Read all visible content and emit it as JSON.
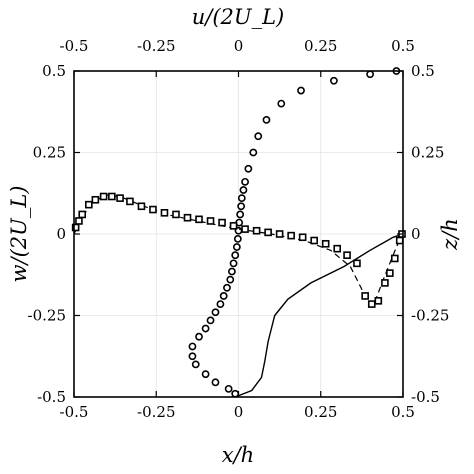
{
  "chart_data": {
    "type": "line",
    "xlim": [
      -0.5,
      0.5
    ],
    "ylim": [
      -0.5,
      0.5
    ],
    "grid": true,
    "axes": {
      "bottom": {
        "label": "x/h",
        "ticks": [
          "-0.5",
          "-0.25",
          "0",
          "0.25",
          "0.5"
        ]
      },
      "top": {
        "label": "u/(2U_L)",
        "ticks": [
          "-0.5",
          "-0.25",
          "0",
          "0.25",
          "0.5"
        ]
      },
      "left": {
        "label": "w/(2U_L)",
        "ticks": [
          "0.5",
          "0.25",
          "0",
          "-0.25",
          "-0.5"
        ]
      },
      "right": {
        "label": "z/h",
        "ticks": [
          "0.5",
          "0.25",
          "0",
          "-0.25",
          "-0.5"
        ]
      }
    },
    "series": [
      {
        "kind": "u-profile",
        "line_style": "solid",
        "marker": "circle",
        "line_x": [
          -0.01,
          0.04,
          0.07,
          0.08,
          0.09,
          0.11,
          0.15,
          0.22,
          0.32,
          0.4,
          0.47,
          0.5
        ],
        "line_y": [
          -0.5,
          -0.48,
          -0.44,
          -0.39,
          -0.33,
          -0.25,
          -0.2,
          -0.15,
          -0.1,
          -0.05,
          -0.01,
          0.0
        ],
        "x": [
          -0.01,
          -0.03,
          -0.07,
          -0.1,
          -0.13,
          -0.14,
          -0.14,
          -0.12,
          -0.1,
          -0.085,
          -0.07,
          -0.055,
          -0.045,
          -0.035,
          -0.025,
          -0.02,
          -0.015,
          -0.01,
          -0.005,
          -0.002,
          0.0,
          0.002,
          0.005,
          0.008,
          0.01,
          0.015,
          0.02,
          0.03,
          0.045,
          0.06,
          0.085,
          0.13,
          0.19,
          0.29,
          0.4,
          0.48
        ],
        "y": [
          -0.49,
          -0.475,
          -0.455,
          -0.43,
          -0.4,
          -0.375,
          -0.345,
          -0.315,
          -0.29,
          -0.265,
          -0.24,
          -0.215,
          -0.19,
          -0.165,
          -0.14,
          -0.115,
          -0.09,
          -0.065,
          -0.04,
          -0.015,
          0.01,
          0.035,
          0.06,
          0.085,
          0.11,
          0.135,
          0.16,
          0.2,
          0.25,
          0.3,
          0.35,
          0.4,
          0.44,
          0.47,
          0.49,
          0.5
        ]
      },
      {
        "kind": "w-profile",
        "line_style": "dashed",
        "marker": "square",
        "line_x": [
          -0.5,
          -0.47,
          -0.44,
          -0.4,
          -0.36,
          -0.3,
          -0.22,
          -0.1,
          0.0,
          0.1,
          0.2,
          0.28,
          0.34,
          0.39,
          0.41,
          0.44,
          0.48,
          0.5
        ],
        "line_y": [
          0.0,
          0.06,
          0.1,
          0.12,
          0.115,
          0.09,
          0.06,
          0.035,
          0.015,
          0.0,
          -0.02,
          -0.05,
          -0.1,
          -0.2,
          -0.22,
          -0.14,
          -0.04,
          0.0
        ],
        "x": [
          -0.495,
          -0.485,
          -0.475,
          -0.455,
          -0.435,
          -0.41,
          -0.385,
          -0.36,
          -0.33,
          -0.295,
          -0.26,
          -0.225,
          -0.19,
          -0.155,
          -0.12,
          -0.085,
          -0.05,
          -0.015,
          0.02,
          0.055,
          0.09,
          0.125,
          0.16,
          0.195,
          0.23,
          0.265,
          0.3,
          0.33,
          0.36,
          0.385,
          0.405,
          0.425,
          0.445,
          0.46,
          0.475,
          0.49,
          0.497
        ],
        "y": [
          0.02,
          0.04,
          0.06,
          0.09,
          0.105,
          0.115,
          0.115,
          0.11,
          0.1,
          0.085,
          0.075,
          0.065,
          0.06,
          0.05,
          0.045,
          0.04,
          0.035,
          0.025,
          0.015,
          0.01,
          0.005,
          0.0,
          -0.005,
          -0.01,
          -0.02,
          -0.03,
          -0.045,
          -0.065,
          -0.09,
          -0.19,
          -0.215,
          -0.205,
          -0.15,
          -0.12,
          -0.075,
          -0.02,
          0.0
        ]
      }
    ]
  }
}
